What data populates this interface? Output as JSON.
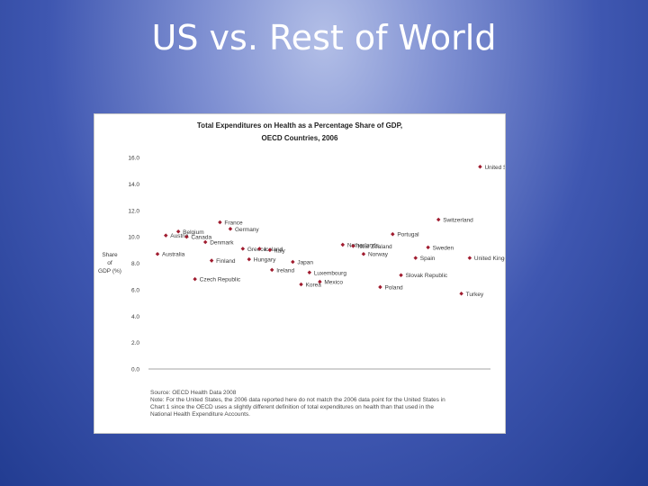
{
  "slide": {
    "title": "US vs. Rest of World"
  },
  "chart_data": {
    "type": "scatter",
    "title": "Total Expenditures on Health as a Percentage Share of GDP,",
    "subtitle": "OECD Countries, 2006",
    "ylabel": [
      "Share",
      "of",
      "GDP (%)"
    ],
    "ylim": [
      0,
      16
    ],
    "yticks": [
      "0.0",
      "2.0",
      "4.0",
      "6.0",
      "8.0",
      "10.0",
      "12.0",
      "14.0",
      "16.0"
    ],
    "grid": false,
    "points": [
      {
        "label": "Belgium",
        "x": 1.0,
        "y": 10.4
      },
      {
        "label": "Austria",
        "x": 0.4,
        "y": 10.1
      },
      {
        "label": "Australia",
        "x": 0.0,
        "y": 8.7
      },
      {
        "label": "Canada",
        "x": 1.4,
        "y": 10.0
      },
      {
        "label": "Denmark",
        "x": 2.3,
        "y": 9.6
      },
      {
        "label": "Czech Republic",
        "x": 1.8,
        "y": 6.8
      },
      {
        "label": "Finland",
        "x": 2.6,
        "y": 8.2
      },
      {
        "label": "France",
        "x": 3.0,
        "y": 11.1
      },
      {
        "label": "Germany",
        "x": 3.5,
        "y": 10.6
      },
      {
        "label": "Greece",
        "x": 4.1,
        "y": 9.1
      },
      {
        "label": "Iceland",
        "x": 4.9,
        "y": 9.1
      },
      {
        "label": "Italy",
        "x": 5.4,
        "y": 9.0
      },
      {
        "label": "Hungary",
        "x": 4.4,
        "y": 8.3
      },
      {
        "label": "Ireland",
        "x": 5.5,
        "y": 7.5
      },
      {
        "label": "Japan",
        "x": 6.5,
        "y": 8.1
      },
      {
        "label": "Korea",
        "x": 6.9,
        "y": 6.4
      },
      {
        "label": "Luxembourg",
        "x": 7.3,
        "y": 7.3
      },
      {
        "label": "Mexico",
        "x": 7.8,
        "y": 6.6
      },
      {
        "label": "Netherlands",
        "x": 8.9,
        "y": 9.4
      },
      {
        "label": "New Zealand",
        "x": 9.4,
        "y": 9.3
      },
      {
        "label": "Norway",
        "x": 9.9,
        "y": 8.7
      },
      {
        "label": "Poland",
        "x": 10.7,
        "y": 6.2
      },
      {
        "label": "Portugal",
        "x": 11.3,
        "y": 10.2
      },
      {
        "label": "Slovak Republic",
        "x": 11.7,
        "y": 7.1
      },
      {
        "label": "Spain",
        "x": 12.4,
        "y": 8.4
      },
      {
        "label": "Sweden",
        "x": 13.0,
        "y": 9.2
      },
      {
        "label": "Switzerland",
        "x": 13.5,
        "y": 11.3
      },
      {
        "label": "Turkey",
        "x": 14.6,
        "y": 5.7
      },
      {
        "label": "United Kingdom",
        "x": 15.0,
        "y": 8.4
      },
      {
        "label": "United States",
        "x": 15.5,
        "y": 15.3
      }
    ],
    "xlim": [
      0,
      16
    ],
    "annotations": [
      "Source: OECD Health Data 2008",
      "Note: For the United States, the 2006 data reported here do not match the 2006 data point for the United States in",
      "Chart 1 since the OECD uses a slightly different definition of total expenditures on health than that used in the",
      "National Health Expenditure Accounts."
    ]
  },
  "colors": {
    "marker": "#a01c2f",
    "text": "#3a3a3a",
    "axis": "#888888"
  }
}
